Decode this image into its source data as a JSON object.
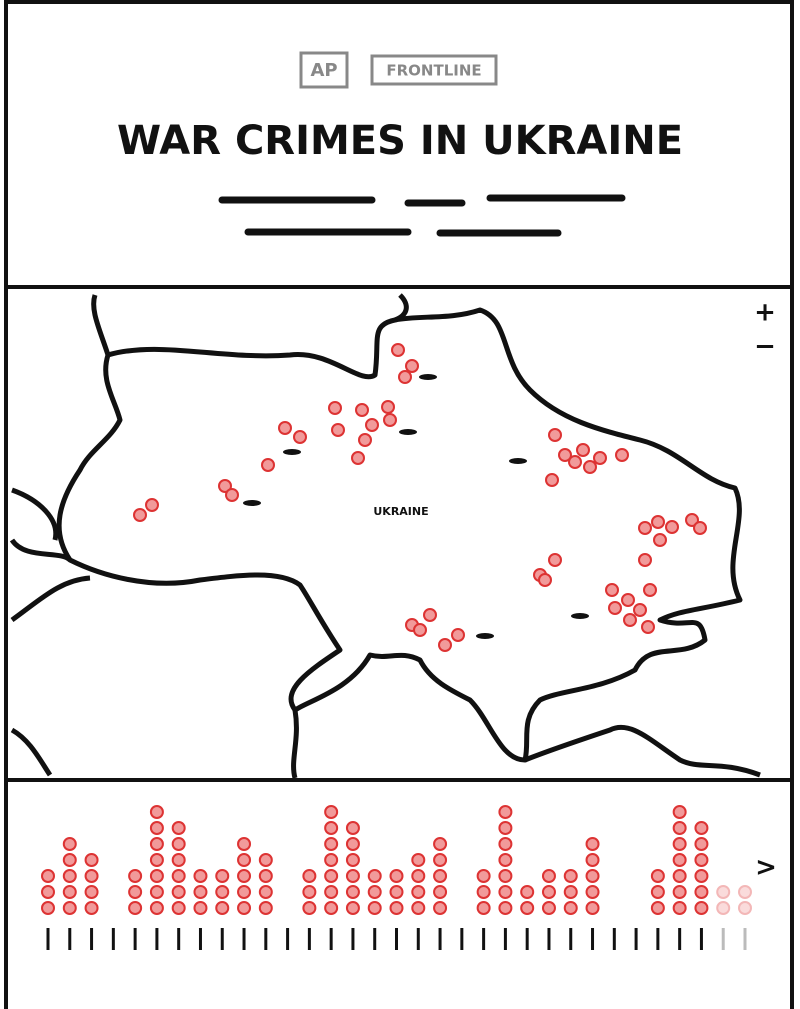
{
  "header": {
    "logos": [
      "AP",
      "FRONTLINE"
    ],
    "title": "WAR CRIMES IN UKRAINE"
  },
  "map": {
    "label": "UKRAINE",
    "zoom_in": "+",
    "zoom_out": "−"
  },
  "timeline": {
    "counts": [
      3,
      5,
      4,
      0,
      3,
      7,
      6,
      3,
      3,
      5,
      4,
      0,
      3,
      7,
      6,
      3,
      3,
      4,
      5,
      0,
      3,
      7,
      2,
      3,
      3,
      5,
      0,
      0,
      3,
      7,
      6,
      2,
      2
    ],
    "next": ">"
  }
}
